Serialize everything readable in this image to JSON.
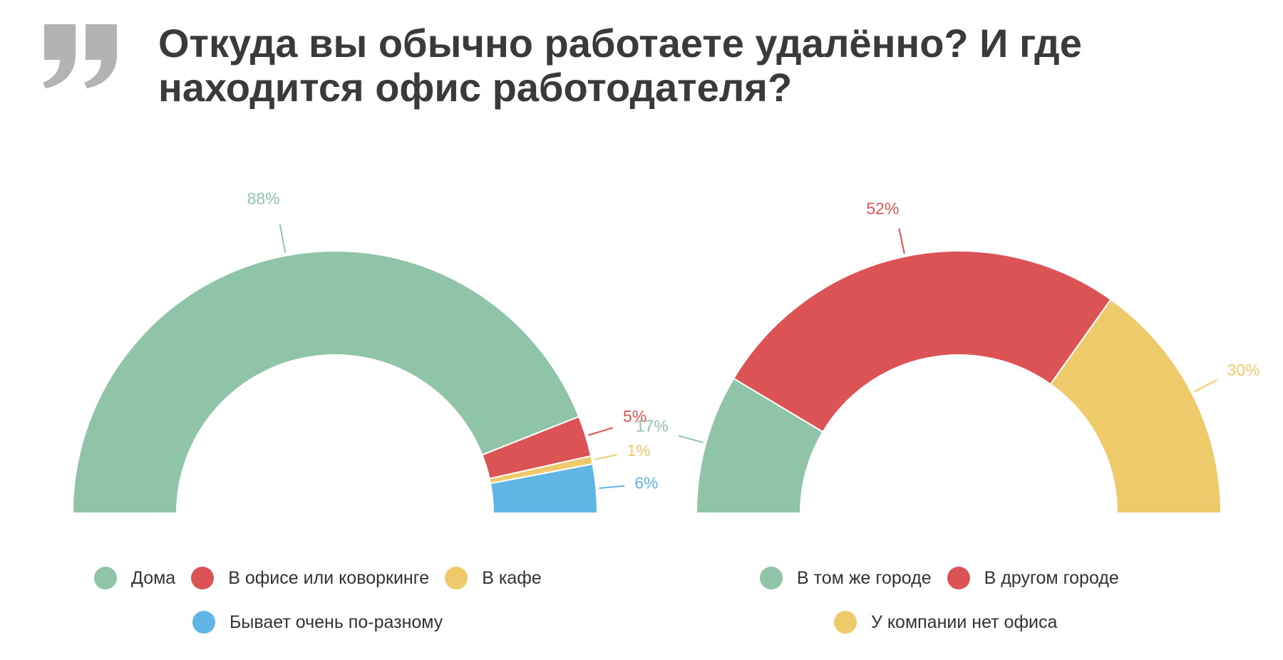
{
  "title": "Откуда вы обычно работаете удалённо? И где находится офис работодателя?",
  "icons": {
    "quote": "quote-mark-icon"
  },
  "chart_data": [
    {
      "type": "pie",
      "variant": "half-donut",
      "categories": [
        "Дома",
        "В офисе или коворкинге",
        "В кафе",
        "Бывает очень по-разному"
      ],
      "values": [
        88,
        5,
        1,
        6
      ],
      "labels": [
        "88%",
        "5%",
        "1%",
        "6%"
      ],
      "colors": [
        "#90c4a8",
        "#dc5355",
        "#efca6a",
        "#5fb6e5"
      ],
      "legend": "bottom"
    },
    {
      "type": "pie",
      "variant": "half-donut",
      "categories": [
        "В том же городе",
        "В другом городе",
        "У компании нет офиса"
      ],
      "values": [
        17,
        52,
        30
      ],
      "labels": [
        "17%",
        "52%",
        "30%"
      ],
      "colors": [
        "#90c4a8",
        "#dc5355",
        "#efca6a"
      ],
      "legend": "bottom"
    }
  ]
}
